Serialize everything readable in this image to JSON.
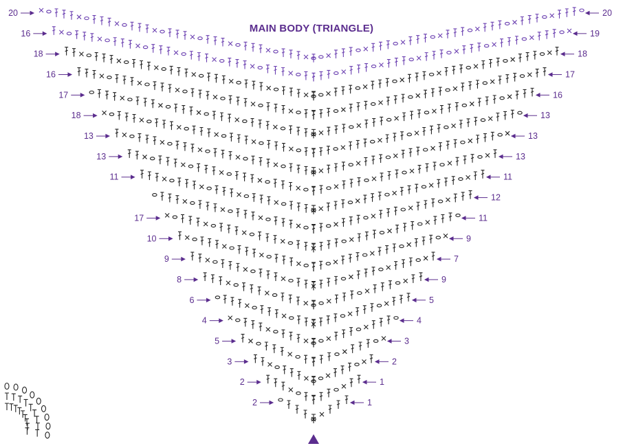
{
  "title": "MAIN BODY (TRIANGLE)",
  "colors": {
    "accent": "#5b2d8e",
    "stitch": "#222222",
    "edge": "#6a3fb0"
  },
  "start_marker_icon": "filled-triangle-icon",
  "left_row_labels": [
    "20",
    "16",
    "18",
    "16",
    "17",
    "18",
    "13",
    "13",
    "11",
    "17",
    "10",
    "9",
    "8",
    "6",
    "4",
    "5",
    "3",
    "2",
    "2"
  ],
  "right_row_labels": [
    "20",
    "19",
    "18",
    "17",
    "16",
    "13",
    "13",
    "13",
    "11",
    "12",
    "11",
    "9",
    "7",
    "9",
    "5",
    "4",
    "3",
    "2",
    "1",
    "1"
  ]
}
